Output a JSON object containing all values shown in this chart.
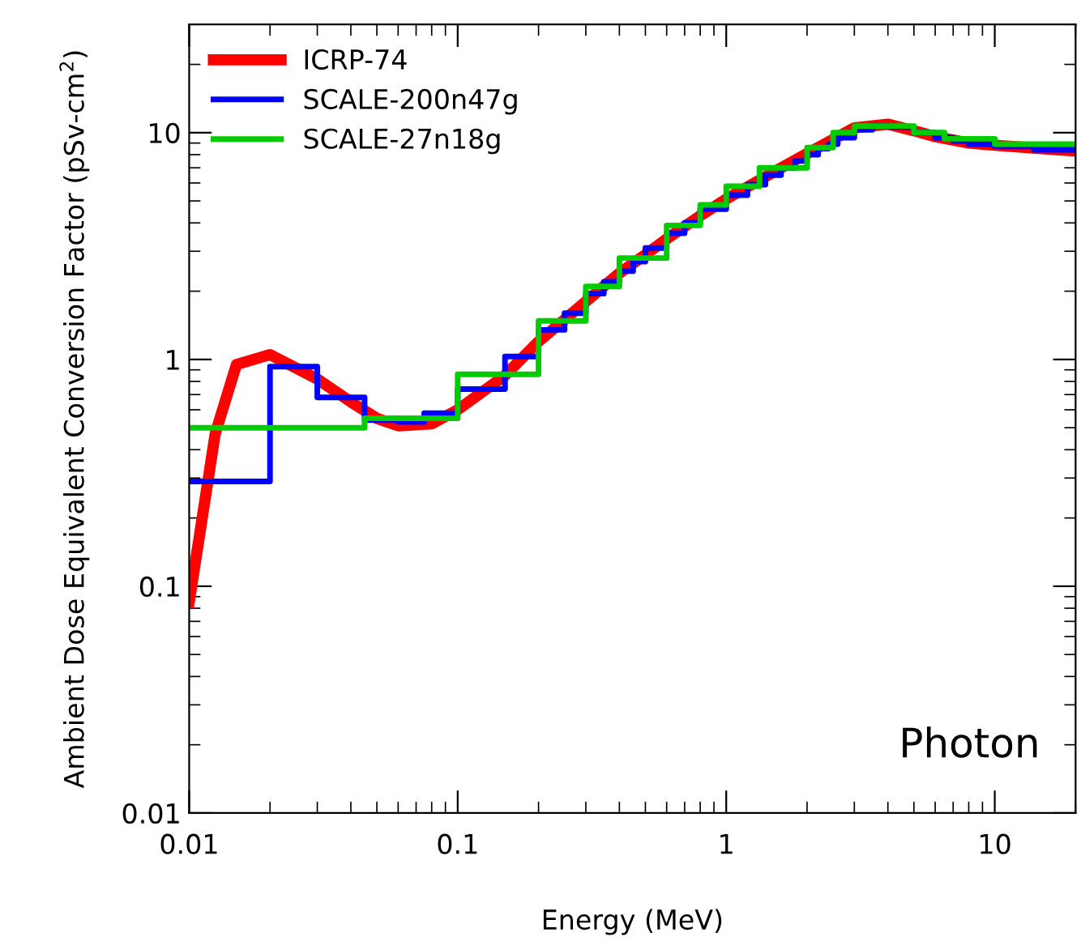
{
  "chart_data": {
    "type": "line",
    "xlabel": "Energy (MeV)",
    "ylabel": "Ambient Dose Equivalent Conversion Factor (pSv-cm$^{2}$)",
    "log": "xy",
    "xlim": [
      0.01,
      20
    ],
    "ylim": [
      0.01,
      30
    ],
    "xticks": [
      0.01,
      0.1,
      1,
      10
    ],
    "yticks": [
      0.01,
      0.1,
      1,
      10
    ],
    "grid": false,
    "legend": "top left",
    "annotations": [
      "Photon"
    ],
    "series": [
      {
        "name": "ICRP-74",
        "color": "#ff0000",
        "x": [
          0.01,
          0.0125,
          0.015,
          0.02,
          0.03,
          0.04,
          0.05,
          0.06,
          0.08,
          0.1,
          0.15,
          0.2,
          0.3,
          0.4,
          0.5,
          0.6,
          0.8,
          1,
          1.5,
          2,
          3,
          4,
          5,
          6,
          8,
          10,
          15,
          20
        ],
        "values": [
          0.085,
          0.47,
          0.95,
          1.05,
          0.82,
          0.65,
          0.55,
          0.51,
          0.52,
          0.6,
          0.85,
          1.2,
          1.8,
          2.4,
          2.9,
          3.4,
          4.3,
          5.1,
          6.7,
          8.1,
          10.5,
          10.9,
          10.2,
          9.6,
          9.0,
          8.8,
          8.5,
          8.3
        ]
      },
      {
        "name": "SCALE-200n47g",
        "type": "step",
        "color": "#0000ff",
        "x": [
          0.01,
          0.02,
          0.03,
          0.045,
          0.06,
          0.075,
          0.1,
          0.15,
          0.2,
          0.25,
          0.3,
          0.35,
          0.4,
          0.45,
          0.5,
          0.6,
          0.7,
          0.8,
          1,
          1.2,
          1.4,
          1.6,
          1.8,
          2,
          2.2,
          2.4,
          2.6,
          3,
          3.5,
          4,
          5,
          6,
          7,
          8,
          10,
          14,
          20
        ],
        "values": [
          0.29,
          0.93,
          0.68,
          0.54,
          0.53,
          0.58,
          0.74,
          1.03,
          1.35,
          1.6,
          1.95,
          2.2,
          2.45,
          2.7,
          3.1,
          3.6,
          4.0,
          4.6,
          5.3,
          5.9,
          6.5,
          7.0,
          7.5,
          8.0,
          8.5,
          8.9,
          9.5,
          10.3,
          10.7,
          10.6,
          10.0,
          9.5,
          9.2,
          8.9,
          8.7,
          8.4,
          8.4
        ]
      },
      {
        "name": "SCALE-27n18g",
        "type": "step",
        "color": "#00cc00",
        "x": [
          0.01,
          0.045,
          0.1,
          0.2,
          0.3,
          0.4,
          0.6,
          0.8,
          1,
          1.33,
          2,
          2.5,
          3,
          5,
          6.5,
          10,
          20
        ],
        "values": [
          0.5,
          0.55,
          0.86,
          1.48,
          2.1,
          2.8,
          3.9,
          4.8,
          5.8,
          7.0,
          8.6,
          10.0,
          10.7,
          10.0,
          9.4,
          8.9,
          8.9
        ]
      }
    ]
  }
}
